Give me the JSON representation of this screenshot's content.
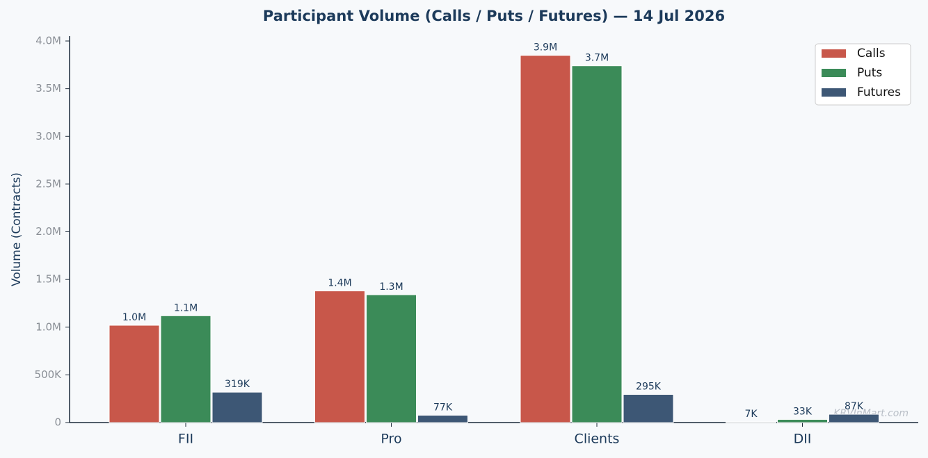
{
  "chart_data": {
    "type": "bar",
    "title": "Participant Volume (Calls / Puts / Futures) — 14 Jul 2026",
    "y_label": "Volume (Contracts)",
    "categories": [
      "FII",
      "Pro",
      "Clients",
      "DII"
    ],
    "series": [
      {
        "name": "Calls",
        "color": "#c8574a",
        "values": [
          1020000,
          1380000,
          3850000,
          7000
        ],
        "value_labels": [
          "1.0M",
          "1.4M",
          "3.9M",
          "7K"
        ]
      },
      {
        "name": "Puts",
        "color": "#3b8b58",
        "values": [
          1120000,
          1340000,
          3740000,
          33000
        ],
        "value_labels": [
          "1.1M",
          "1.3M",
          "3.7M",
          "33K"
        ]
      },
      {
        "name": "Futures",
        "color": "#3d5775",
        "values": [
          319000,
          77000,
          295000,
          87000
        ],
        "value_labels": [
          "319K",
          "77K",
          "295K",
          "87K"
        ]
      }
    ],
    "ylim": [
      0,
      4000000
    ],
    "yticks": [
      0,
      {
        "value": 500000,
        "label": "500K"
      },
      {
        "value": 1000000,
        "label": "1.0M"
      },
      {
        "value": 1500000,
        "label": "1.5M"
      },
      {
        "value": 2000000,
        "label": "2.0M"
      },
      {
        "value": 2500000,
        "label": "2.5M"
      },
      {
        "value": 3000000,
        "label": "3.0M"
      },
      {
        "value": 3500000,
        "label": "3.5M"
      },
      {
        "value": 4000000,
        "label": "4.0M"
      }
    ],
    "legend": "upper right",
    "watermark": "KRVInMart.com"
  }
}
